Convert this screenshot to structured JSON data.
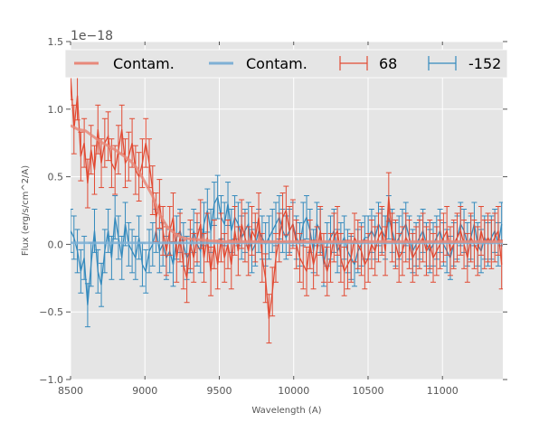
{
  "chart_data": {
    "type": "line",
    "title": "",
    "xlabel": "Wavelength (A)",
    "ylabel": "Flux (erg/s/cm^2/A)",
    "y_offset_label": "1e−18",
    "xlim": [
      8500,
      11406
    ],
    "ylim": [
      -1.0,
      1.5
    ],
    "grid": true,
    "legend_position": "top",
    "x_ticks": [
      8500,
      9000,
      9500,
      10000,
      10500,
      11000
    ],
    "x_tick_labels": [
      "8500",
      "9000",
      "9500",
      "10000",
      "10500",
      "11000"
    ],
    "y_ticks": [
      -1.0,
      -0.5,
      0.0,
      0.5,
      1.0,
      1.5
    ],
    "y_tick_labels": [
      "−1.0",
      "−0.5",
      "0.0",
      "0.5",
      "1.0",
      "1.5"
    ],
    "colors": {
      "red": "#e24a33",
      "blue": "#348abd",
      "red_contam": "#e8897a",
      "blue_contam": "#7eb0d5",
      "axes_bg": "#e5e5e5"
    },
    "legend": [
      {
        "label": "Contam.",
        "kind": "line",
        "series": "contam_68"
      },
      {
        "label": "Contam.",
        "kind": "line",
        "series": "contam_-152"
      },
      {
        "label": "68",
        "kind": "errorbar",
        "series": "obj_68"
      },
      {
        "label": "-152",
        "kind": "errorbar",
        "series": "obj_-152"
      }
    ],
    "series": [
      {
        "name": "Contam.",
        "id": "contam_68",
        "x": [
          8500,
          8550,
          8600,
          8650,
          8700,
          8750,
          8800,
          8850,
          8900,
          8950,
          9000,
          9050,
          9100,
          9150,
          9200,
          9250,
          9300,
          9400,
          9500,
          9700,
          10000,
          10500,
          11000,
          11406
        ],
        "y": [
          0.88,
          0.85,
          0.84,
          0.8,
          0.76,
          0.73,
          0.7,
          0.66,
          0.62,
          0.56,
          0.46,
          0.36,
          0.22,
          0.13,
          0.08,
          0.05,
          0.04,
          0.03,
          0.02,
          0.02,
          0.02,
          0.02,
          0.02,
          0.02
        ]
      },
      {
        "name": "Contam.",
        "id": "contam_-152",
        "x": [
          8500,
          11406
        ],
        "y": [
          0.01,
          0.01
        ]
      },
      {
        "name": "68",
        "id": "obj_68",
        "x": [
          8500,
          8523,
          8546,
          8569,
          8592,
          8615,
          8638,
          8661,
          8684,
          8707,
          8730,
          8753,
          8776,
          8799,
          8822,
          8845,
          8868,
          8891,
          8914,
          8937,
          8960,
          8983,
          9006,
          9029,
          9052,
          9075,
          9098,
          9121,
          9144,
          9167,
          9190,
          9213,
          9236,
          9259,
          9282,
          9305,
          9328,
          9351,
          9374,
          9397,
          9420,
          9443,
          9466,
          9489,
          9512,
          9535,
          9558,
          9581,
          9604,
          9627,
          9650,
          9673,
          9696,
          9719,
          9742,
          9765,
          9788,
          9811,
          9834,
          9857,
          9880,
          9903,
          9926,
          9949,
          9972,
          9995,
          10018,
          10041,
          10064,
          10087,
          10110,
          10133,
          10156,
          10179,
          10202,
          10225,
          10248,
          10271,
          10294,
          10317,
          10340,
          10363,
          10386,
          10409,
          10432,
          10455,
          10478,
          10501,
          10524,
          10547,
          10570,
          10593,
          10616,
          10639,
          10662,
          10685,
          10708,
          10731,
          10754,
          10777,
          10800,
          10823,
          10846,
          10869,
          10892,
          10915,
          10938,
          10961,
          10984,
          11007,
          11030,
          11053,
          11076,
          11099,
          11122,
          11145,
          11168,
          11191,
          11214,
          11237,
          11260,
          11283,
          11306,
          11329,
          11352,
          11375,
          11398
        ],
        "y": [
          1.25,
          0.85,
          1.1,
          0.65,
          0.75,
          0.45,
          0.7,
          0.55,
          0.85,
          0.6,
          0.75,
          0.8,
          0.6,
          0.55,
          0.7,
          0.85,
          0.6,
          0.65,
          0.75,
          0.55,
          0.5,
          0.6,
          0.75,
          0.6,
          0.4,
          0.2,
          0.3,
          0.1,
          -0.05,
          0.1,
          0.2,
          -0.1,
          0.05,
          -0.15,
          -0.25,
          0.0,
          -0.1,
          0.05,
          0.15,
          -0.1,
          0.05,
          -0.2,
          0.0,
          -0.15,
          0.05,
          -0.1,
          0.0,
          -0.15,
          0.1,
          -0.05,
          0.15,
          0.05,
          -0.05,
          0.1,
          0.05,
          0.2,
          -0.1,
          -0.25,
          -0.55,
          -0.35,
          -0.1,
          0.05,
          0.2,
          0.25,
          0.1,
          0.15,
          0.0,
          -0.1,
          -0.15,
          -0.2,
          0.0,
          -0.15,
          -0.05,
          0.1,
          -0.1,
          -0.2,
          -0.1,
          0.05,
          0.1,
          -0.1,
          -0.2,
          -0.15,
          -0.1,
          0.05,
          0.0,
          -0.05,
          -0.15,
          -0.1,
          0.0,
          -0.05,
          0.05,
          0.1,
          -0.05,
          0.35,
          0.05,
          0.0,
          -0.1,
          -0.05,
          0.05,
          0.0,
          -0.1,
          -0.05,
          0.0,
          0.05,
          -0.05,
          0.0,
          -0.1,
          -0.05,
          0.0,
          0.05,
          0.1,
          -0.05,
          0.0,
          0.05,
          0.1,
          0.0,
          -0.1,
          0.05,
          0.0,
          -0.05,
          0.1,
          0.0,
          0.05,
          0.0,
          0.05,
          0.1,
          -0.15
        ],
        "yerr": 0.18
      },
      {
        "name": "-152",
        "id": "obj_-152",
        "x": [
          8500,
          8523,
          8546,
          8569,
          8592,
          8615,
          8638,
          8661,
          8684,
          8707,
          8730,
          8753,
          8776,
          8799,
          8822,
          8845,
          8868,
          8891,
          8914,
          8937,
          8960,
          8983,
          9006,
          9029,
          9052,
          9075,
          9098,
          9121,
          9144,
          9167,
          9190,
          9213,
          9236,
          9259,
          9282,
          9305,
          9328,
          9351,
          9374,
          9397,
          9420,
          9443,
          9466,
          9489,
          9512,
          9535,
          9558,
          9581,
          9604,
          9627,
          9650,
          9673,
          9696,
          9719,
          9742,
          9765,
          9788,
          9811,
          9834,
          9857,
          9880,
          9903,
          9926,
          9949,
          9972,
          9995,
          10018,
          10041,
          10064,
          10087,
          10110,
          10133,
          10156,
          10179,
          10202,
          10225,
          10248,
          10271,
          10294,
          10317,
          10340,
          10363,
          10386,
          10409,
          10432,
          10455,
          10478,
          10501,
          10524,
          10547,
          10570,
          10593,
          10616,
          10639,
          10662,
          10685,
          10708,
          10731,
          10754,
          10777,
          10800,
          10823,
          10846,
          10869,
          10892,
          10915,
          10938,
          10961,
          10984,
          11007,
          11030,
          11053,
          11076,
          11099,
          11122,
          11145,
          11168,
          11191,
          11214,
          11237,
          11260,
          11283,
          11306,
          11329,
          11352,
          11375,
          11398
        ],
        "y": [
          0.1,
          0.05,
          -0.05,
          -0.2,
          -0.1,
          -0.45,
          -0.15,
          0.1,
          -0.2,
          -0.3,
          -0.05,
          0.1,
          -0.1,
          0.2,
          0.05,
          -0.1,
          0.15,
          0.0,
          -0.05,
          -0.1,
          0.05,
          -0.15,
          -0.2,
          -0.05,
          0.0,
          0.1,
          -0.05,
          0.0,
          -0.1,
          -0.05,
          -0.15,
          0.05,
          0.1,
          0.0,
          -0.1,
          -0.05,
          0.1,
          0.0,
          -0.05,
          0.15,
          0.25,
          0.1,
          0.3,
          0.35,
          0.2,
          0.15,
          0.3,
          0.1,
          0.2,
          0.15,
          0.05,
          0.1,
          0.15,
          -0.05,
          0.0,
          0.1,
          0.05,
          0.0,
          0.05,
          0.1,
          0.15,
          0.2,
          0.1,
          0.05,
          0.1,
          0.15,
          0.05,
          0.0,
          0.15,
          0.2,
          0.1,
          -0.05,
          0.15,
          0.1,
          -0.15,
          0.0,
          0.05,
          0.1,
          -0.05,
          0.0,
          0.05,
          -0.05,
          -0.1,
          -0.15,
          -0.05,
          0.0,
          0.05,
          0.05,
          0.1,
          0.05,
          0.15,
          0.1,
          0.05,
          0.2,
          0.1,
          0.0,
          0.05,
          0.1,
          0.15,
          0.05,
          -0.05,
          0.0,
          0.05,
          0.1,
          0.0,
          -0.05,
          0.0,
          0.05,
          0.1,
          0.0,
          -0.05,
          -0.1,
          0.0,
          0.05,
          0.15,
          0.1,
          0.0,
          0.05,
          0.15,
          0.0,
          -0.05,
          0.05,
          0.0,
          0.05,
          0.1,
          0.0,
          0.15
        ],
        "yerr": 0.16
      }
    ]
  }
}
